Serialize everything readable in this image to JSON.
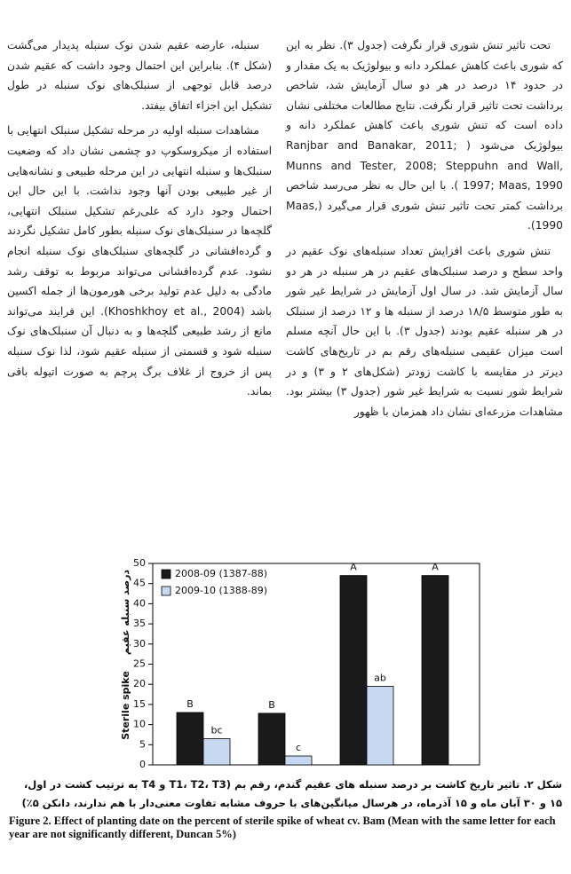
{
  "columns": {
    "right": [
      "تحت تاثیر تنش شوری قرار نگرفت (جدول ۳). نظر به این که شوری باعث کاهش عملکرد دانه و بیولوژیک به یک مقدار و در حدود ۱۴ درصد در هر دو سال آزمایش شد، شاخص برداشت تحت تاثیر قرار نگرفت. نتایج مطالعات مختلفی نشان داده است که تنش شوری باعث کاهش عملکرد دانه و بیولوژیک می‌شود ( Ranjbar and Banakar, 2011; Munns and Tester, 2008; Steppuhn and Wall, 1997; Maas, 1990 ). با این حال به نظر می‌رسد شاخص برداشت کمتر تحت تاثیر تنش شوری قرار می‌گیرد (Maas, 1990).",
      "تنش شوری باعث افزایش تعداد سنبله‌های نوک عقیم در واحد سطح و درصد سنبلک‌های عقیم در هر سنبله در هر دو سال آزمایش شد. در سال اول آزمایش در شرایط غیر شور به طور متوسط ۱۸/۵ درصد از سنبله ها و ۱۲ درصد از سنبلک در هر سنبله عقیم بودند (جدول ۳). با این حال آنچه مسلم است میزان عقیمی سنبله‌های رقم بم در تاریخ‌های کاشت دیرتر در مقایسه با کاشت زودتر (شکل‌های ۲ و ۳) و در شرایط شور نسبت به شرایط غیر شور (جدول ۳) بیشتر بود. مشاهدات مزرعه‌ای نشان داد همزمان با ظهور"
    ],
    "left": [
      "سنبله، عارضه عقیم شدن نوک سنبله پدیدار می‌گشت (شکل ۴). بنابراین این احتمال وجود داشت که عقیم شدن درصد قابل توجهی از سنبلک‌های نوک سنبله در طول تشکیل این اجزاء اتفاق بیفتد.",
      "مشاهدات سنبله اولیه در مرحله تشکیل سنبلک انتهایی با استفاده از میکروسکوپ دو چشمی نشان داد که وضعیت سنبلک‌ها و سنبله انتهایی در این مرحله طبیعی و نشانه‌هایی از غیر طبیعی بودن آنها وجود نداشت. با این حال این احتمال وجود دارد که علی‌رغم تشکیل سنبلک انتهایی، گلچه‌ها در سنبلک‌های نوک سنبله بطور کامل تشکیل نگردند و گرده‌افشانی در گلچه‌های سنبلک‌های نوک سنبله انجام نشود. عدم گرده‌افشانی می‌تواند مربوط به توقف رشد مادگی به دلیل عدم تولید برخی هورمون‌ها از جمله اکسین باشد (Khoshkhoy et al., 2004). این فرایند می‌تواند مانع از رشد طبیعی گلچه‌ها و به دنبال آن سنبلک‌های نوک سنبله شود و قسمتی از سنبله عقیم شود، لذا نوک سنبله پس از خروج از غلاف برگ پرچم به صورت اتیوله باقی بماند."
    ]
  },
  "chart_data": {
    "type": "bar",
    "y_label_fa": "درصد سنبله عقیم",
    "y_label_en": "Sterile spike",
    "categories": [
      null,
      null,
      null,
      null
    ],
    "series": [
      {
        "name": "2008-09 (1387-88)",
        "color": "#1a1a1a",
        "values": [
          13,
          12.8,
          47,
          47
        ],
        "letters": [
          "B",
          "B",
          "A",
          "A"
        ]
      },
      {
        "name": "2009-10 (1388-89)",
        "color": "#c6d9f1",
        "values": [
          6.5,
          2.2,
          19.5,
          null
        ],
        "letters": [
          "bc",
          "c",
          "ab",
          null
        ]
      }
    ],
    "ylim": [
      0,
      50
    ],
    "yticks": [
      0,
      5,
      10,
      15,
      20,
      25,
      30,
      35,
      40,
      45,
      50
    ],
    "legend": "top-left"
  },
  "caption": {
    "fa": "شکل ۲. تاثیر تاریخ کاشت بر درصد سنبله های عقیم گندم، رقم بم (T1، T2، T3 و T4 به ترتیب کشت در اول، ۱۵ و ۳۰ آبان ماه و ۱۵ آذرماه، در هرسال میانگین‌های با حروف مشابه تفاوت معنی‌دار با هم ندارند، دانکن ۵٪)",
    "en": "Figure 2. Effect of planting date on the percent of sterile spike of wheat cv. Bam (Mean with the same letter for each year are not significantly different, Duncan 5%)"
  }
}
